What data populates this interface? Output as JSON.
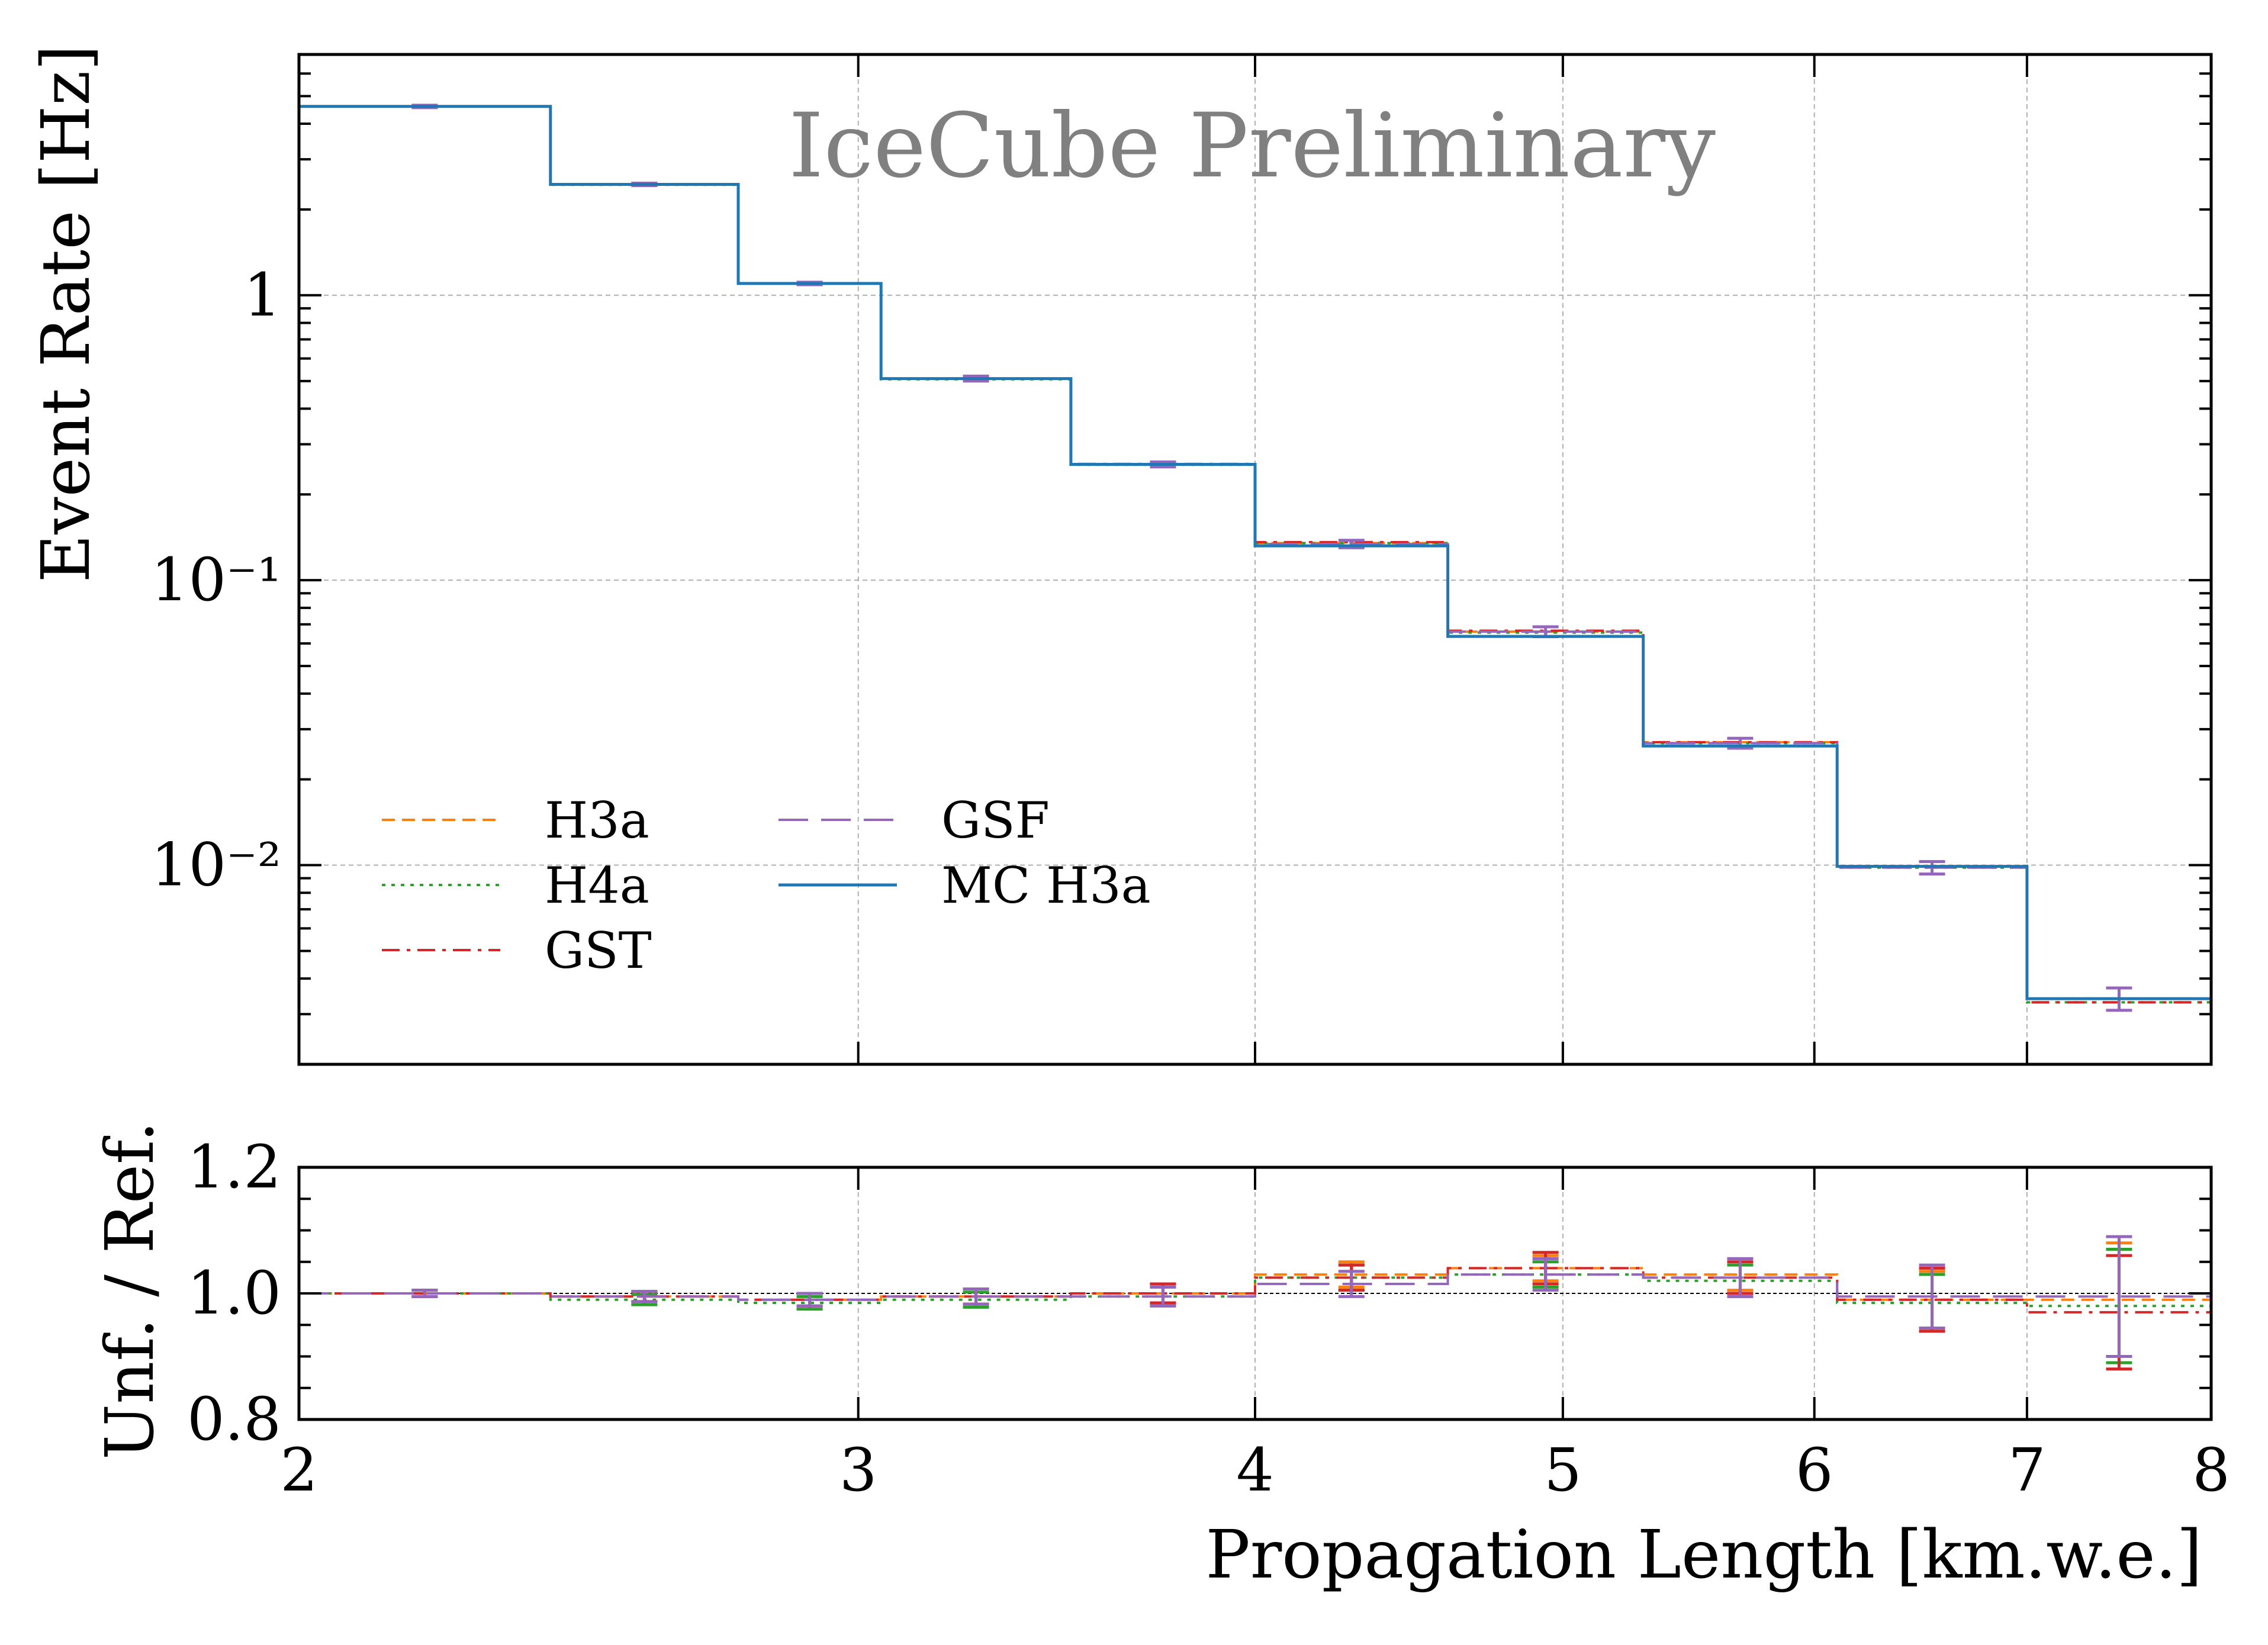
{
  "chart_data": [
    {
      "type": "line",
      "title": "",
      "watermark": "IceCube Preliminary",
      "ylabel": "Event Rate [Hz]",
      "xlabel": "",
      "yscale": "log",
      "xscale": "log",
      "xlim": [
        2,
        8
      ],
      "ylim": [
        0.002,
        7
      ],
      "yticks": [
        {
          "value": 1,
          "label": "1"
        },
        {
          "value": 0.1,
          "label": "10⁻¹"
        },
        {
          "value": 0.01,
          "label": "10⁻²"
        }
      ],
      "grid": true,
      "legend_position": "lower-left",
      "bin_edges": [
        2,
        2.4,
        2.75,
        3.05,
        3.5,
        4.0,
        4.6,
        5.3,
        6.1,
        7.0,
        8.0
      ],
      "series": [
        {
          "name": "H3a",
          "color": "#ff7f0e",
          "dash": "dashed",
          "values": [
            4.6,
            2.45,
            1.1,
            0.51,
            0.255,
            0.135,
            0.066,
            0.027,
            0.0099,
            0.0034
          ]
        },
        {
          "name": "H4a",
          "color": "#2ca02c",
          "dash": "dotted",
          "values": [
            4.6,
            2.44,
            1.1,
            0.507,
            0.254,
            0.135,
            0.0655,
            0.0268,
            0.0098,
            0.0033
          ]
        },
        {
          "name": "GST",
          "color": "#d62728",
          "dash": "dashdot",
          "values": [
            4.6,
            2.45,
            1.1,
            0.51,
            0.256,
            0.136,
            0.0665,
            0.027,
            0.0099,
            0.0033
          ]
        },
        {
          "name": "GSF",
          "color": "#9467bd",
          "dash": "longdash",
          "values": [
            4.6,
            2.45,
            1.1,
            0.51,
            0.255,
            0.134,
            0.066,
            0.0268,
            0.0098,
            0.0034
          ],
          "errors": [
            0.01,
            0.01,
            0.01,
            0.02,
            0.02,
            0.03,
            0.04,
            0.04,
            0.05,
            0.09
          ]
        },
        {
          "name": "MC H3a",
          "color": "#1f77b4",
          "dash": "solid",
          "values": [
            4.6,
            2.45,
            1.1,
            0.51,
            0.255,
            0.132,
            0.0635,
            0.0262,
            0.0099,
            0.0034
          ]
        }
      ]
    },
    {
      "type": "line",
      "title": "",
      "xlabel": "Propagation Length [km.w.e.]",
      "ylabel": "Unf. / Ref.",
      "xscale": "log",
      "xlim": [
        2,
        8
      ],
      "ylim": [
        0.8,
        1.2
      ],
      "yticks": [
        {
          "value": 0.8,
          "label": "0.8"
        },
        {
          "value": 1.0,
          "label": "1.0"
        },
        {
          "value": 1.2,
          "label": "1.2"
        }
      ],
      "xticks": [
        {
          "value": 2,
          "label": "2"
        },
        {
          "value": 3,
          "label": "3"
        },
        {
          "value": 4,
          "label": "4"
        },
        {
          "value": 5,
          "label": "5"
        },
        {
          "value": 6,
          "label": "6"
        },
        {
          "value": 7,
          "label": "7"
        },
        {
          "value": 8,
          "label": "8"
        }
      ],
      "reference_line": 1.0,
      "grid": true,
      "bin_edges": [
        2,
        2.4,
        2.75,
        3.05,
        3.5,
        4.0,
        4.6,
        5.3,
        6.1,
        7.0,
        8.0
      ],
      "series": [
        {
          "name": "H3a",
          "color": "#ff7f0e",
          "dash": "dashed",
          "values": [
            1.0,
            0.995,
            0.99,
            0.995,
            1.0,
            1.03,
            1.04,
            1.03,
            0.99,
            0.99
          ],
          "errors": [
            0.005,
            0.008,
            0.01,
            0.012,
            0.015,
            0.02,
            0.02,
            0.025,
            0.045,
            0.09
          ]
        },
        {
          "name": "H4a",
          "color": "#2ca02c",
          "dash": "dotted",
          "values": [
            1.0,
            0.99,
            0.985,
            0.99,
            0.995,
            1.025,
            1.03,
            1.02,
            0.985,
            0.98
          ],
          "errors": [
            0.005,
            0.008,
            0.01,
            0.012,
            0.015,
            0.02,
            0.02,
            0.025,
            0.045,
            0.09
          ]
        },
        {
          "name": "GST",
          "color": "#d62728",
          "dash": "dashdot",
          "values": [
            1.0,
            0.995,
            0.99,
            0.995,
            1.0,
            1.025,
            1.04,
            1.025,
            0.99,
            0.97
          ],
          "errors": [
            0.005,
            0.008,
            0.01,
            0.012,
            0.015,
            0.02,
            0.025,
            0.025,
            0.05,
            0.09
          ]
        },
        {
          "name": "GSF",
          "color": "#9467bd",
          "dash": "longdash",
          "values": [
            1.0,
            0.995,
            0.99,
            0.995,
            0.995,
            1.015,
            1.03,
            1.025,
            0.995,
            0.995
          ],
          "errors": [
            0.005,
            0.008,
            0.01,
            0.012,
            0.015,
            0.02,
            0.025,
            0.03,
            0.05,
            0.095
          ]
        }
      ]
    }
  ]
}
